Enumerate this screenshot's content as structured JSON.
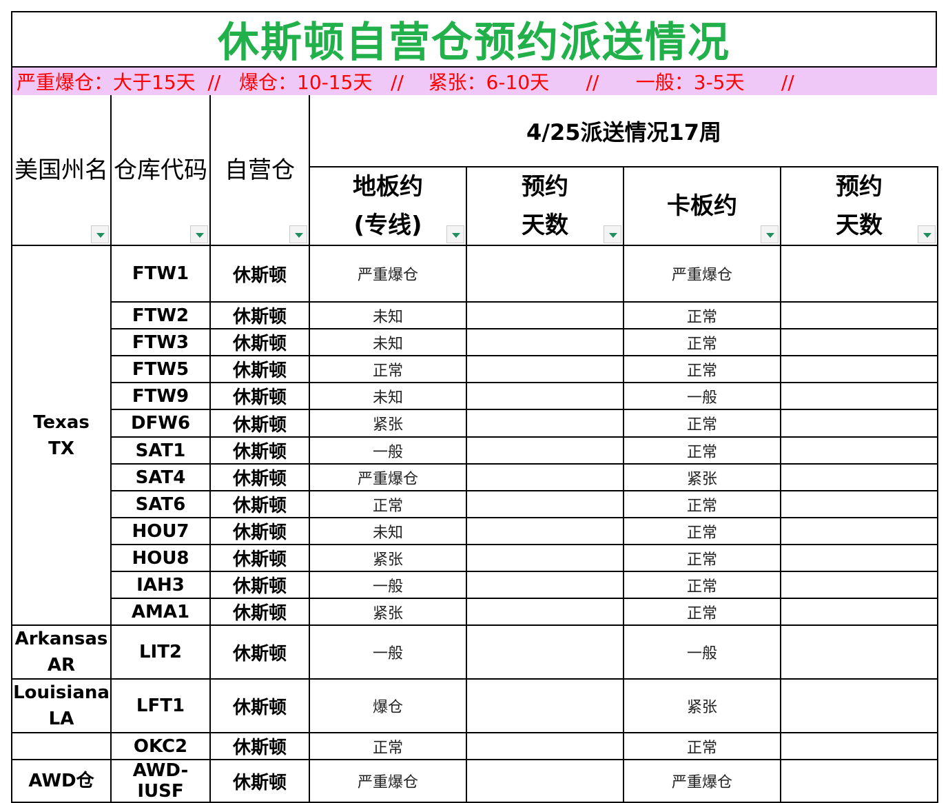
{
  "title": "休斯顿自营仓预约派送情况",
  "legend": "严重爆仓：大于15天  //   爆仓：10-15天   //    紧张：6-10天      //      一般：3-5天      //",
  "header": {
    "state": "美国州名",
    "code": "仓库代码",
    "warehouse": "自营仓",
    "week": "4/25派送情况17周",
    "floor_line1": "地板约",
    "floor_line2": "(专线)",
    "days1_line1": "预约",
    "days1_line2": "天数",
    "pallet": "卡板约",
    "days2_line1": "预约",
    "days2_line2": "天数"
  },
  "groups": [
    {
      "state": [
        "Texas",
        "TX"
      ],
      "rows": [
        {
          "code": "FTW1",
          "wh": "休斯顿",
          "floor": "严重爆仓",
          "pallet": "严重爆仓"
        },
        {
          "code": "FTW2",
          "wh": "休斯顿",
          "floor": "未知",
          "pallet": "正常"
        },
        {
          "code": "FTW3",
          "wh": "休斯顿",
          "floor": "未知",
          "pallet": "正常"
        },
        {
          "code": "FTW5",
          "wh": "休斯顿",
          "floor": "正常",
          "pallet": "正常"
        },
        {
          "code": "FTW9",
          "wh": "休斯顿",
          "floor": "未知",
          "pallet": "一般"
        },
        {
          "code": "DFW6",
          "wh": "休斯顿",
          "floor": "紧张",
          "pallet": "正常"
        },
        {
          "code": "SAT1",
          "wh": "休斯顿",
          "floor": "一般",
          "pallet": "正常"
        },
        {
          "code": "SAT4",
          "wh": "休斯顿",
          "floor": "严重爆仓",
          "pallet": "紧张"
        },
        {
          "code": "SAT6",
          "wh": "休斯顿",
          "floor": "正常",
          "pallet": "正常"
        },
        {
          "code": "HOU7",
          "wh": "休斯顿",
          "floor": "未知",
          "pallet": "正常"
        },
        {
          "code": "HOU8",
          "wh": "休斯顿",
          "floor": "紧张",
          "pallet": "正常"
        },
        {
          "code": "IAH3",
          "wh": "休斯顿",
          "floor": "一般",
          "pallet": "正常"
        },
        {
          "code": "AMA1",
          "wh": "休斯顿",
          "floor": "紧张",
          "pallet": "正常"
        }
      ]
    },
    {
      "state": [
        "Arkansas",
        "AR"
      ],
      "rows": [
        {
          "code": "LIT2",
          "wh": "休斯顿",
          "floor": "一般",
          "pallet": "一般"
        }
      ]
    },
    {
      "state": [
        "Louisiana",
        "LA"
      ],
      "rows": [
        {
          "code": "LFT1",
          "wh": "休斯顿",
          "floor": "爆仓",
          "pallet": "紧张"
        }
      ]
    },
    {
      "state": [],
      "rows": [
        {
          "code": "OKC2",
          "wh": "休斯顿",
          "floor": "正常",
          "pallet": "正常"
        }
      ]
    },
    {
      "state": [
        "AWD仓"
      ],
      "rows": [
        {
          "code": "AWD-IUSF",
          "wh": "休斯顿",
          "floor": "严重爆仓",
          "pallet": "严重爆仓"
        }
      ]
    }
  ],
  "colors": {
    "title": "#22b04a",
    "legend_bg": "#f0c8f8",
    "legend_text": "#ff0000"
  }
}
